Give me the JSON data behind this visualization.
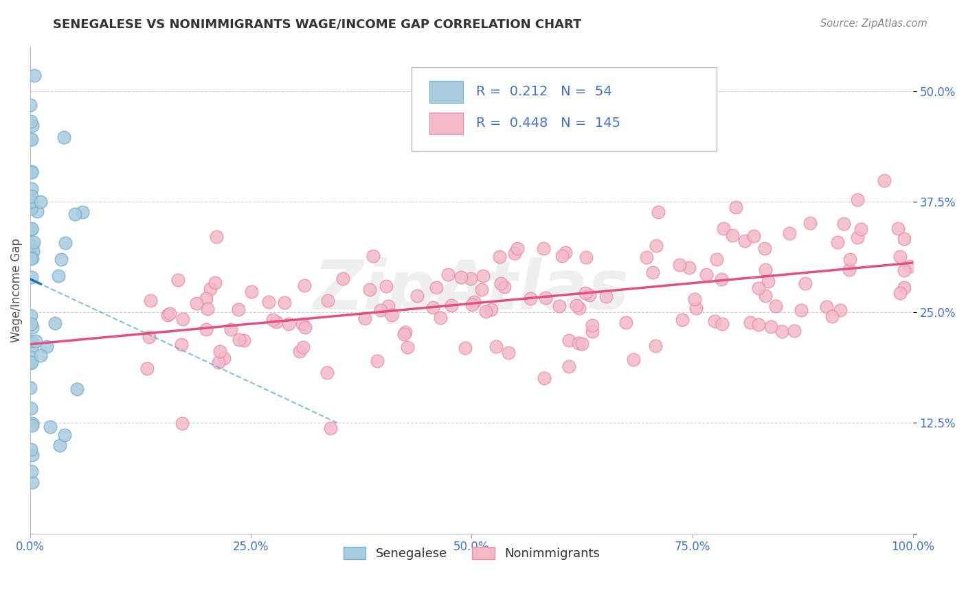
{
  "title": "SENEGALESE VS NONIMMIGRANTS WAGE/INCOME GAP CORRELATION CHART",
  "source": "Source: ZipAtlas.com",
  "xlabel_senegalese": "Senegalese",
  "xlabel_nonimmigrants": "Nonimmigrants",
  "ylabel": "Wage/Income Gap",
  "xlim": [
    0.0,
    1.0
  ],
  "ylim": [
    0.0,
    0.55
  ],
  "xticks": [
    0.0,
    0.25,
    0.5,
    0.75,
    1.0
  ],
  "yticks": [
    0.0,
    0.125,
    0.25,
    0.375,
    0.5
  ],
  "xticklabels": [
    "0.0%",
    "25.0%",
    "50.0%",
    "75.0%",
    "100.0%"
  ],
  "yticklabels": [
    "",
    "12.5%",
    "25.0%",
    "37.5%",
    "50.0%"
  ],
  "R_senegalese": 0.212,
  "N_senegalese": 54,
  "R_nonimmigrants": 0.448,
  "N_nonimmigrants": 145,
  "blue_scatter_color": "#a8cce0",
  "blue_scatter_edge": "#7ab0cc",
  "pink_scatter_color": "#f4b8cb",
  "pink_scatter_edge": "#e890a8",
  "blue_solid_line_color": "#2171b5",
  "blue_dashed_line_color": "#6baed6",
  "pink_line_color": "#e05080",
  "watermark_text": "ZipAtlas",
  "background_color": "#ffffff",
  "grid_color": "#d0d0d0",
  "grid_style": "--",
  "title_color": "#333333",
  "ylabel_color": "#555555",
  "tick_label_color": "#4472c4",
  "legend_color": "#4472c4",
  "source_color": "#888888"
}
